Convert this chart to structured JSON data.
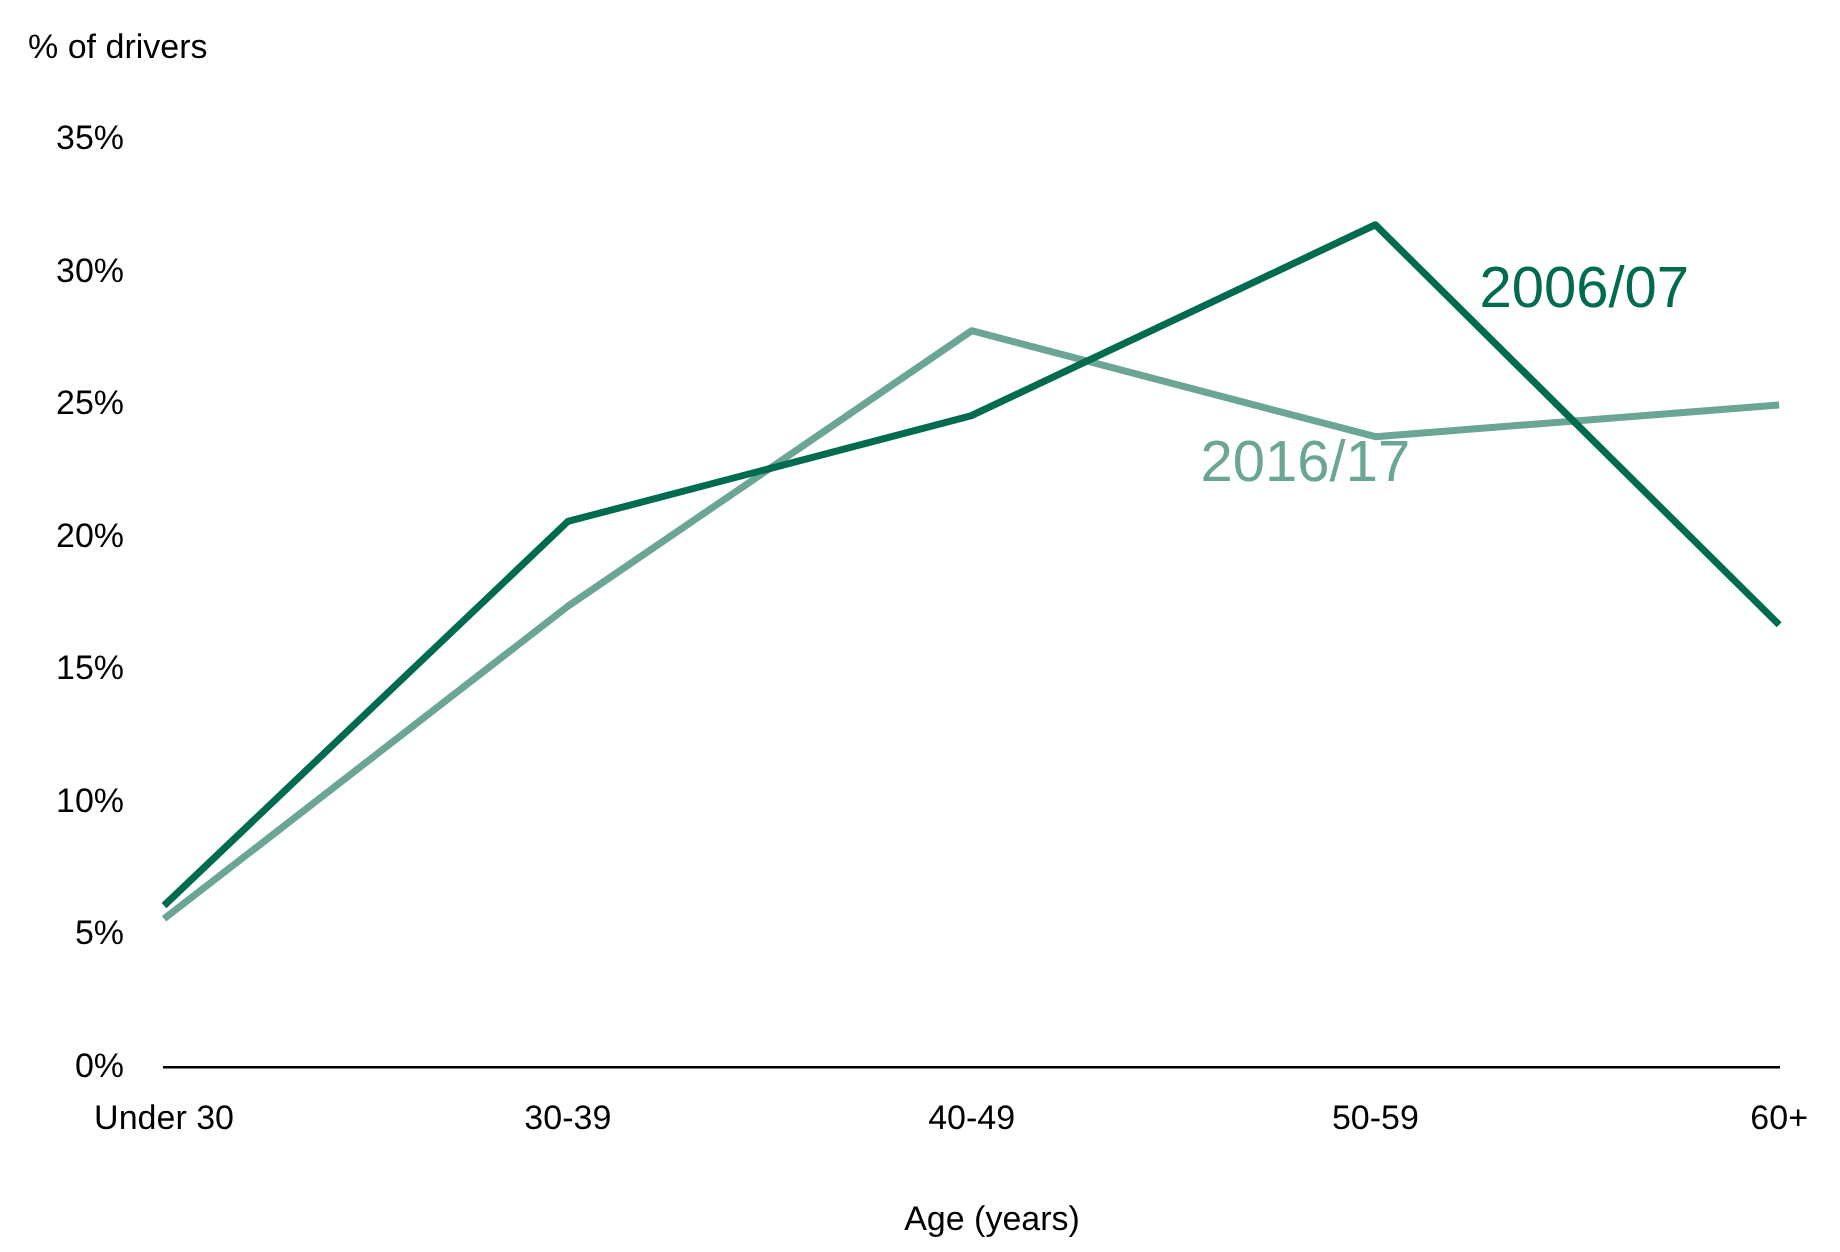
{
  "chart_data": {
    "type": "line",
    "ylabel": "% of drivers",
    "xlabel": "Age (years)",
    "categories": [
      "Under 30",
      "30-39",
      "40-49",
      "50-59",
      "60+"
    ],
    "series": [
      {
        "name": "2006/07",
        "color": "#006b4f",
        "values": [
          6.1,
          20.6,
          24.6,
          31.8,
          16.7
        ]
      },
      {
        "name": "2016/17",
        "color": "#6aa595",
        "values": [
          5.6,
          17.4,
          27.8,
          23.8,
          25.0
        ]
      }
    ],
    "ylim": [
      0,
      35
    ],
    "yticks": [
      {
        "value": 0,
        "label": "0%"
      },
      {
        "value": 5,
        "label": "5%"
      },
      {
        "value": 10,
        "label": "10%"
      },
      {
        "value": 15,
        "label": "15%"
      },
      {
        "value": 20,
        "label": "20%"
      },
      {
        "value": 25,
        "label": "25%"
      },
      {
        "value": 30,
        "label": "30%"
      },
      {
        "value": 35,
        "label": "35%"
      }
    ],
    "grid": false,
    "legend": false,
    "marker": "none",
    "line_style": "solid"
  }
}
